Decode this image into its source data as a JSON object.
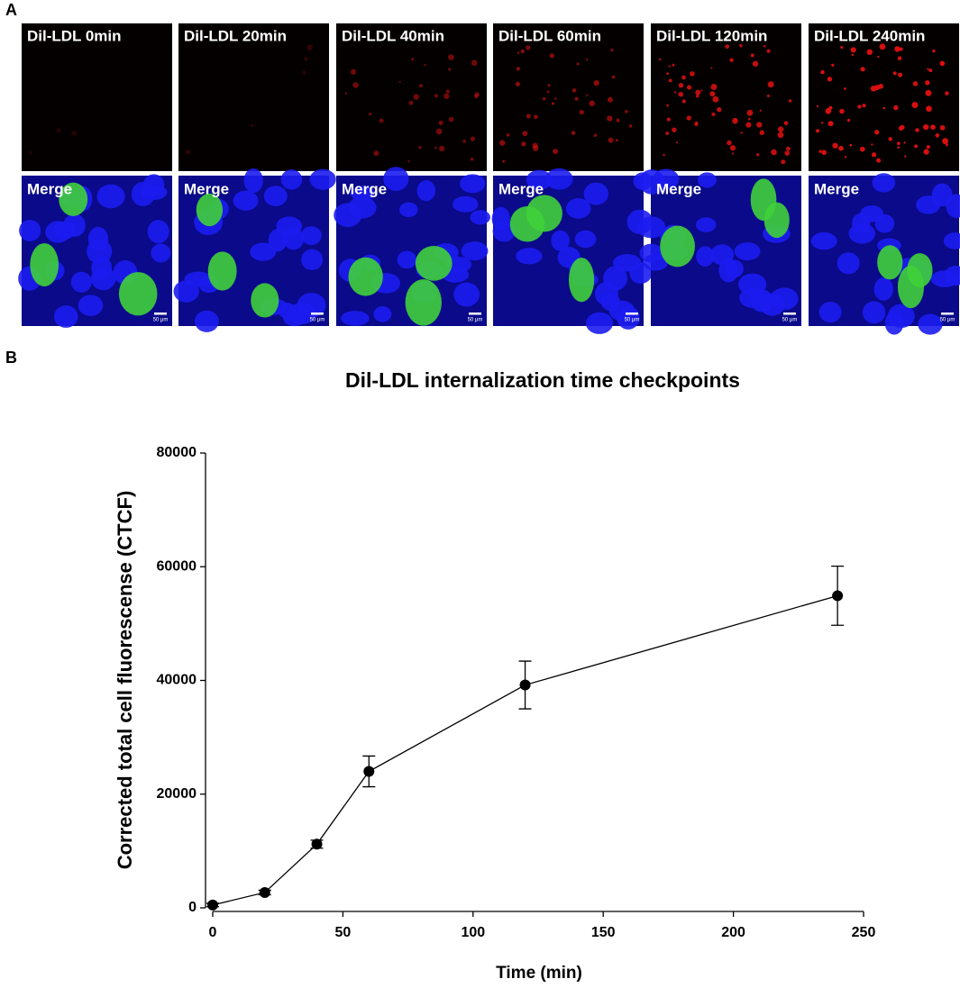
{
  "panels": {
    "a": "A",
    "b": "B"
  },
  "images": [
    {
      "top": "Dil-LDL 0min",
      "bottom": "Merge",
      "scale": "50 μm"
    },
    {
      "top": "Dil-LDL 20min",
      "bottom": "Merge",
      "scale": "50 μm"
    },
    {
      "top": "Dil-LDL 40min",
      "bottom": "Merge",
      "scale": "50 μm"
    },
    {
      "top": "Dil-LDL 60min",
      "bottom": "Merge",
      "scale": "50 μm"
    },
    {
      "top": "Dil-LDL 120min",
      "bottom": "Merge",
      "scale": "50 μm"
    },
    {
      "top": "Dil-LDL 240min",
      "bottom": "Merge",
      "scale": "50 μm"
    }
  ],
  "chart_data": {
    "type": "line",
    "title": "Dil-LDL internalization time checkpoints",
    "x_label": "Time (min)",
    "y_label": "Corrected total cell fluorescense (CTCF)",
    "x": [
      0,
      20,
      40,
      60,
      120,
      240
    ],
    "values": [
      500,
      2700,
      11200,
      24000,
      39200,
      54900
    ],
    "errors": [
      300,
      400,
      700,
      2700,
      4200,
      5200
    ],
    "color": "#000000",
    "xlim": [
      0,
      250
    ],
    "ylim": [
      0,
      80000
    ],
    "xticks": [
      0,
      50,
      100,
      150,
      200,
      250
    ],
    "yticks": [
      0,
      20000,
      40000,
      60000,
      80000
    ]
  }
}
